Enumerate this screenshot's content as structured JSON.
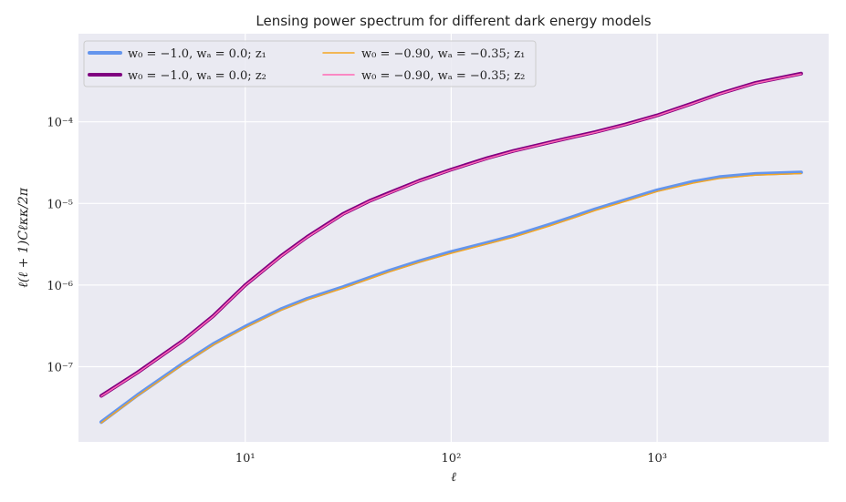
{
  "chart_data": {
    "type": "line",
    "title": "Lensing power spectrum for different dark energy models",
    "xlabel": "ℓ",
    "ylabel": "ℓ(ℓ + 1)Cℓκκ/2π",
    "xscale": "log",
    "yscale": "log",
    "xlim": [
      1.55,
      6800
    ],
    "ylim": [
      1.2e-08,
      0.0012
    ],
    "grid": true,
    "legend_position": "top-left",
    "x_ticks": [
      {
        "value": 10,
        "label": "10¹"
      },
      {
        "value": 100,
        "label": "10²"
      },
      {
        "value": 1000,
        "label": "10³"
      }
    ],
    "y_ticks": [
      {
        "value": 1e-07,
        "label": "10⁻⁷"
      },
      {
        "value": 1e-06,
        "label": "10⁻⁶"
      },
      {
        "value": 1e-05,
        "label": "10⁻⁵"
      },
      {
        "value": 0.0001,
        "label": "10⁻⁴"
      }
    ],
    "x": [
      2,
      3,
      5,
      7,
      10,
      15,
      20,
      30,
      40,
      50,
      70,
      100,
      150,
      200,
      300,
      400,
      500,
      700,
      1000,
      1500,
      2000,
      3000,
      5000
    ],
    "series": [
      {
        "name": "w₀ = −1.0, wₐ = 0.0; z₁",
        "color": "#6495ed",
        "line_width": 4,
        "values": [
          2.1e-08,
          4.5e-08,
          1.1e-07,
          1.9e-07,
          3.1e-07,
          5.1e-07,
          6.8e-07,
          9.5e-07,
          1.23e-06,
          1.5e-06,
          1.96e-06,
          2.55e-06,
          3.3e-06,
          4e-06,
          5.5e-06,
          7e-06,
          8.5e-06,
          1.1e-05,
          1.45e-05,
          1.85e-05,
          2.1e-05,
          2.3e-05,
          2.4e-05
        ]
      },
      {
        "name": "w₀ = −0.90, wₐ = −0.35; z₁",
        "color": "#f5a623",
        "line_width": 1.5,
        "values": [
          2.05e-08,
          4.4e-08,
          1.07e-07,
          1.85e-07,
          3e-07,
          4.95e-07,
          6.6e-07,
          9.2e-07,
          1.19e-06,
          1.45e-06,
          1.9e-06,
          2.45e-06,
          3.2e-06,
          3.85e-06,
          5.3e-06,
          6.75e-06,
          8.2e-06,
          1.06e-05,
          1.4e-05,
          1.78e-05,
          2.02e-05,
          2.22e-05,
          2.32e-05
        ]
      },
      {
        "name": "w₀ = −1.0, wₐ = 0.0; z₂",
        "color": "#800080",
        "line_width": 4,
        "values": [
          4.4e-08,
          8.5e-08,
          2.1e-07,
          4.2e-07,
          1e-06,
          2.3e-06,
          3.9e-06,
          7.5e-06,
          1.07e-05,
          1.35e-05,
          1.9e-05,
          2.6e-05,
          3.6e-05,
          4.4e-05,
          5.6e-05,
          6.6e-05,
          7.5e-05,
          9.3e-05,
          0.00012,
          0.00017,
          0.00022,
          0.0003,
          0.00039
        ]
      },
      {
        "name": "w₀ = −0.90, wₐ = −0.35; z₂",
        "color": "#ff69b4",
        "line_width": 1.5,
        "values": [
          4.35e-08,
          8.4e-08,
          2.08e-07,
          4.15e-07,
          9.9e-07,
          2.27e-06,
          3.85e-06,
          7.4e-06,
          1.06e-05,
          1.33e-05,
          1.88e-05,
          2.57e-05,
          3.55e-05,
          4.35e-05,
          5.55e-05,
          6.55e-05,
          7.4e-05,
          9.2e-05,
          0.000119,
          0.000168,
          0.000218,
          0.000297,
          0.000385
        ]
      }
    ]
  }
}
